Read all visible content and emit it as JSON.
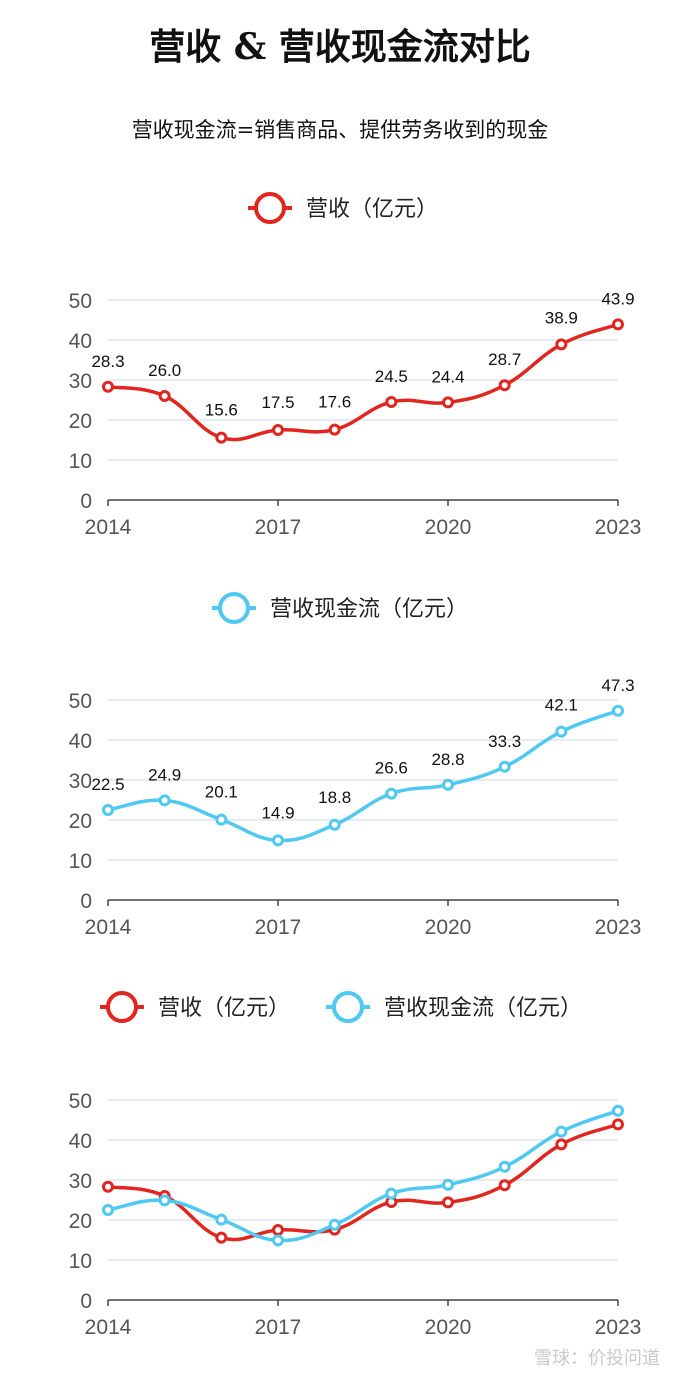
{
  "page": {
    "title": "营收 & 营收现金流对比",
    "subtitle": "营收现金流=销售商品、提供劳务收到的现金",
    "watermark": "雪球：价投问道"
  },
  "colors": {
    "revenue": "#e0261e",
    "cashflow": "#4fc8f2",
    "grid": "#dfe5ef",
    "axis": "#444444"
  },
  "chart_data": [
    {
      "type": "line",
      "legend": [
        "营收（亿元）"
      ],
      "x": [
        2014,
        2015,
        2016,
        2017,
        2018,
        2019,
        2020,
        2021,
        2022,
        2023
      ],
      "xticks": [
        "2014",
        "2017",
        "2020",
        "2023"
      ],
      "ylim": [
        0,
        50
      ],
      "yticks": [
        0,
        10,
        20,
        30,
        40,
        50
      ],
      "series": [
        {
          "name": "营收（亿元）",
          "color": "#e0261e",
          "values": [
            28.3,
            26.0,
            15.6,
            17.5,
            17.6,
            24.5,
            24.4,
            28.7,
            38.9,
            43.9
          ],
          "labels": [
            "28.3",
            "26.0",
            "15.6",
            "17.5",
            "17.6",
            "24.5",
            "24.4",
            "28.7",
            "38.9",
            "43.9"
          ]
        }
      ]
    },
    {
      "type": "line",
      "legend": [
        "营收现金流（亿元）"
      ],
      "x": [
        2014,
        2015,
        2016,
        2017,
        2018,
        2019,
        2020,
        2021,
        2022,
        2023
      ],
      "xticks": [
        "2014",
        "2017",
        "2020",
        "2023"
      ],
      "ylim": [
        0,
        50
      ],
      "yticks": [
        0,
        10,
        20,
        30,
        40,
        50
      ],
      "series": [
        {
          "name": "营收现金流（亿元）",
          "color": "#4fc8f2",
          "values": [
            22.5,
            24.9,
            20.1,
            14.9,
            18.8,
            26.6,
            28.8,
            33.3,
            42.1,
            47.3
          ],
          "labels": [
            "22.5",
            "24.9",
            "20.1",
            "14.9",
            "18.8",
            "26.6",
            "28.8",
            "33.3",
            "42.1",
            "47.3"
          ]
        }
      ]
    },
    {
      "type": "line",
      "legend": [
        "营收（亿元）",
        "营收现金流（亿元）"
      ],
      "x": [
        2014,
        2015,
        2016,
        2017,
        2018,
        2019,
        2020,
        2021,
        2022,
        2023
      ],
      "xticks": [
        "2014",
        "2017",
        "2020",
        "2023"
      ],
      "ylim": [
        0,
        50
      ],
      "yticks": [
        0,
        10,
        20,
        30,
        40,
        50
      ],
      "series": [
        {
          "name": "营收（亿元）",
          "color": "#e0261e",
          "values": [
            28.3,
            26.0,
            15.6,
            17.5,
            17.6,
            24.5,
            24.4,
            28.7,
            38.9,
            43.9
          ]
        },
        {
          "name": "营收现金流（亿元）",
          "color": "#4fc8f2",
          "values": [
            22.5,
            24.9,
            20.1,
            14.9,
            18.8,
            26.6,
            28.8,
            33.3,
            42.1,
            47.3
          ]
        }
      ]
    }
  ]
}
